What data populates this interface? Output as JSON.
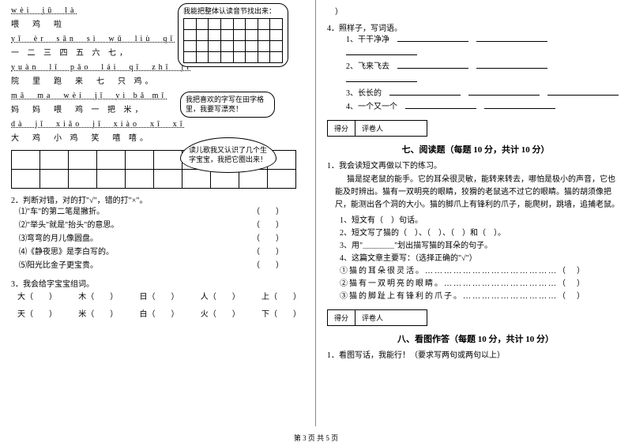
{
  "left": {
    "poem": {
      "l1p": "wèi  jū  là",
      "l1c": "喂  鸡  啦",
      "l2p": "yī  èr  sān  sì  wǔ  liù  qī",
      "l2c": "一 二 三 四 五 六 七，",
      "l3p": "yuàn  lǐ  pǎo  lái  qī  zhī  jī",
      "l3c": "院  里  跑  来  七  只 鸡。",
      "l4p": "mā  ma  wèi  jī  yì bǎ mǐ",
      "l4c": "妈  妈  喂  鸡 一 把 米，",
      "l5p": "dà  jī  xiǎo  jī  xiào  xī  xī",
      "l5c": "大  鸡  小 鸡  笑  嘻 嘻。"
    },
    "bubble1": "我能把整体认读音节找出来：",
    "bubble2": "我把喜欢的字写在田字格里，我要写漂亮！",
    "bubble3": "读儿歌我又认识了几个生字宝宝，我把它圈出来！",
    "q2": {
      "title": "2．判断对错，对的打\"√\"，错的打\"×\"。",
      "i1": "⑴\"车\"的第二笔是撇折。",
      "i2": "⑵\"举头\"就是\"抬头\"的意思。",
      "i3": "⑶弯弯的月儿像圆盘。",
      "i4": "⑷《静夜思》是李白写的。",
      "i5": "⑸阳光比金子更宝贵。"
    },
    "q3": {
      "title": "3．我会给字宝宝组词。",
      "r1": [
        "大（　　）",
        "木（　　）",
        "日（　　）",
        "人（　　）",
        "上（　　）"
      ],
      "r2": [
        "天（　　）",
        "米（　　）",
        "白（　　）",
        "火（　　）",
        "下（　　）"
      ]
    }
  },
  "right": {
    "q4": {
      "title": "4．照样子，写词语。",
      "i1": "1、干干净净",
      "i2": "2、飞来飞去",
      "i3": "3、长长的",
      "i4": "4、一个又一个"
    },
    "section7": {
      "score_l": "得分",
      "score_r": "评卷人",
      "title": "七、阅读题（每题 10 分，共计 10 分）",
      "lead": "1．我会读短文再做以下的练习。",
      "p1": "猫是捉老鼠的能手。它的耳朵很灵敏，能转来转去，哪怕是极小的声音，它也能及时辨出。猫有一双明亮的眼睛，狡猾的老鼠逃不过它的眼睛。猫的胡须像把尺，能测出各个洞的大小。猫的脚爪上有锋利的爪子，能爬树，跳墙，追捕老鼠。",
      "s1": "1、短文有（　）句话。",
      "s2": "2、短文写了猫的（　）、（　）、（　）和（　）。",
      "s3": "3、用\"＿＿＿＿\"划出描写猫的耳朵的句子。",
      "s4": "4、这篇文章主要写：（选择正确的\"√\"）",
      "o1": "①猫的耳朵很灵活。……………………………………（　）",
      "o2": "②猫有一双明亮的眼睛。………………………………（　）",
      "o3": "③猫的脚趾上有锋利的爪子。…………………………（　）"
    },
    "section8": {
      "score_l": "得分",
      "score_r": "评卷人",
      "title": "八、看图作答（每题 10 分，共计 10 分）",
      "lead": "1．看图写话，我能行！（要求写两句或两句以上）"
    }
  },
  "footer": "第 3 页  共 5 页"
}
